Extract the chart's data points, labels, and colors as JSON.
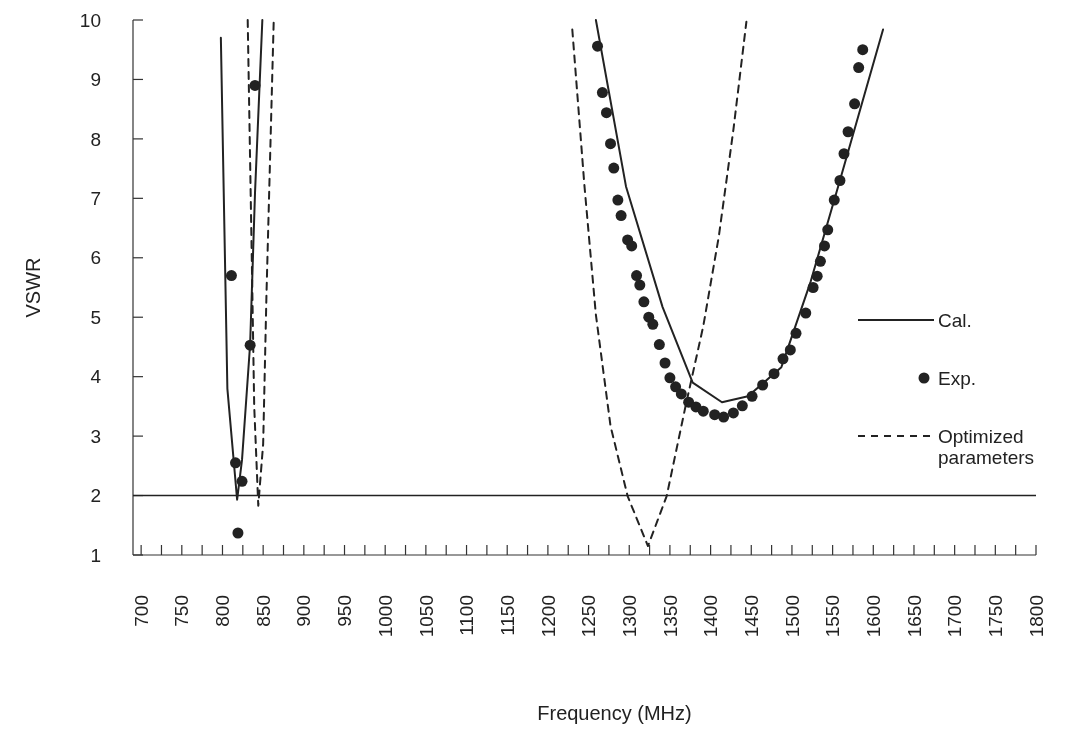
{
  "chart_data": {
    "type": "line",
    "xlabel": "Frequency (MHz)",
    "ylabel": "VSWR",
    "xlim": [
      690,
      1800
    ],
    "ylim": [
      1,
      10
    ],
    "xticks": [
      700,
      {
        "value": 725,
        "label": null
      },
      750,
      {
        "value": 775,
        "label": null
      },
      800,
      {
        "value": 825,
        "label": null
      },
      850,
      {
        "value": 875,
        "label": null
      },
      900,
      {
        "value": 925,
        "label": null
      },
      950,
      {
        "value": 975,
        "label": null
      },
      1000,
      {
        "value": 1025,
        "label": null
      },
      1050,
      {
        "value": 1075,
        "label": null
      },
      1100,
      {
        "value": 1125,
        "label": null
      },
      1150,
      {
        "value": 1175,
        "label": null
      },
      1200,
      {
        "value": 1225,
        "label": null
      },
      1250,
      {
        "value": 1275,
        "label": null
      },
      1300,
      {
        "value": 1325,
        "label": null
      },
      1350,
      {
        "value": 1375,
        "label": null
      },
      1400,
      {
        "value": 1425,
        "label": null
      },
      1450,
      {
        "value": 1475,
        "label": null
      },
      1500,
      {
        "value": 1525,
        "label": null
      },
      1550,
      {
        "value": 1575,
        "label": null
      },
      1600,
      {
        "value": 1625,
        "label": null
      },
      1650,
      {
        "value": 1675,
        "label": null
      },
      1700,
      {
        "value": 1725,
        "label": null
      },
      1750,
      {
        "value": 1775,
        "label": null
      },
      1800
    ],
    "yticks": [
      1,
      2,
      3,
      4,
      5,
      6,
      7,
      8,
      9,
      10
    ],
    "grid": false,
    "legend": "right",
    "ref_lines": [
      {
        "axis": "y",
        "value": 2,
        "color": "#222222",
        "line_style": "solid"
      }
    ],
    "series": [
      {
        "name": "Cal.",
        "color": "#222222",
        "line_style": "solid",
        "x": [
          798,
          806,
          818,
          824,
          834,
          840,
          849,
          1000,
          1259,
          1296,
          1341,
          1378,
          1414,
          1446,
          1487,
          1523,
          1560,
          1612
        ],
        "values": [
          9.7,
          3.8,
          1.93,
          2.6,
          4.55,
          7.1,
          10,
          null,
          10,
          7.2,
          5.17,
          3.9,
          3.57,
          3.67,
          4.16,
          5.6,
          7.35,
          9.84
        ]
      },
      {
        "name": "Exp.",
        "type": "scatter",
        "color": "#222222",
        "marker": "circle",
        "x": [
          811,
          816,
          819,
          824,
          834,
          840,
          1261,
          1267,
          1272,
          1277,
          1281,
          1286,
          1290,
          1298,
          1303,
          1309,
          1313,
          1318,
          1324,
          1329,
          1337,
          1344,
          1350,
          1357,
          1364,
          1373,
          1382,
          1391,
          1405,
          1416,
          1428,
          1439,
          1451,
          1464,
          1478,
          1489,
          1498,
          1505,
          1517,
          1526,
          1531,
          1535,
          1540,
          1544,
          1552,
          1559,
          1564,
          1569,
          1577,
          1582,
          1587
        ],
        "values": [
          5.7,
          2.55,
          1.37,
          2.24,
          4.53,
          8.9,
          9.56,
          8.78,
          8.44,
          7.92,
          7.51,
          6.97,
          6.71,
          6.3,
          6.2,
          5.7,
          5.54,
          5.26,
          5.0,
          4.88,
          4.54,
          4.23,
          3.98,
          3.83,
          3.71,
          3.57,
          3.49,
          3.42,
          3.36,
          3.32,
          3.39,
          3.51,
          3.67,
          3.86,
          4.05,
          4.3,
          4.45,
          4.73,
          5.07,
          5.5,
          5.69,
          5.94,
          6.2,
          6.47,
          6.97,
          7.3,
          7.75,
          8.12,
          8.59,
          9.2,
          9.5
        ]
      },
      {
        "name": "Optimized parameters",
        "color": "#222222",
        "line_style": "dashed",
        "x": [
          831,
          836,
          839,
          844,
          850,
          854,
          863,
          1000,
          1230,
          1245,
          1259,
          1277,
          1298,
          1323,
          1346,
          1369,
          1391,
          1410,
          1428,
          1444
        ],
        "values": [
          10,
          6,
          3.5,
          1.83,
          2.87,
          5.35,
          10,
          null,
          9.84,
          7.2,
          5.04,
          3.17,
          1.99,
          1.15,
          1.99,
          3.49,
          4.85,
          6.35,
          8.15,
          9.97
        ]
      }
    ]
  }
}
